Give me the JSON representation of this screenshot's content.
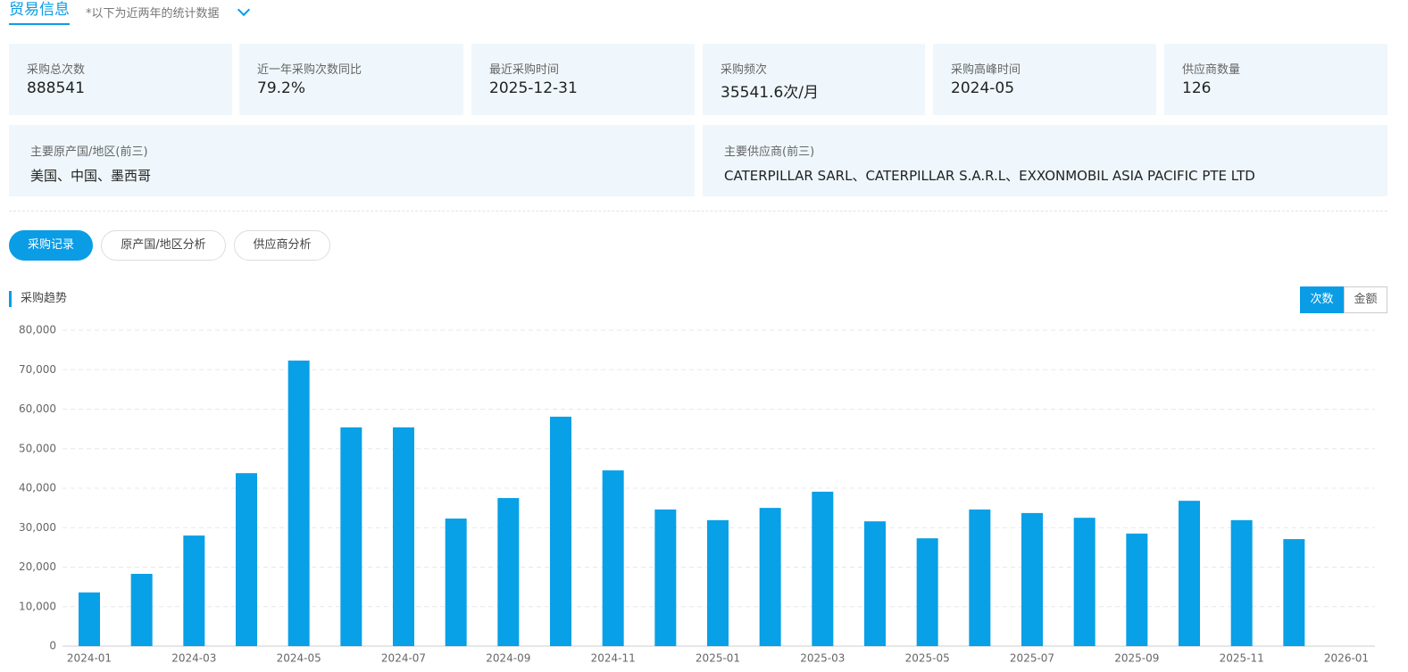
{
  "header": {
    "title": "贸易信息",
    "note": "*以下为近两年的统计数据"
  },
  "stats": [
    {
      "label": "采购总次数",
      "value": "888541"
    },
    {
      "label": "近一年采购次数同比",
      "value": "79.2%"
    },
    {
      "label": "最近采购时间",
      "value": "2025-12-31"
    },
    {
      "label": "采购频次",
      "value": "35541.6次/月"
    },
    {
      "label": "采购高峰时间",
      "value": "2024-05"
    },
    {
      "label": "供应商数量",
      "value": "126"
    }
  ],
  "highlights": [
    {
      "label": "主要原产国/地区(前三)",
      "value": "美国、中国、墨西哥"
    },
    {
      "label": "主要供应商(前三)",
      "value": "CATERPILLAR SARL、CATERPILLAR S.A.R.L、EXXONMOBIL ASIA PACIFIC PTE LTD"
    }
  ],
  "tabs": [
    "采购记录",
    "原产国/地区分析",
    "供应商分析"
  ],
  "chart_section": {
    "title": "采购趋势",
    "toggles": [
      "次数",
      "金额"
    ]
  },
  "chart_data": {
    "type": "bar",
    "color": "#08a0e6",
    "grid": true,
    "categories": [
      "2024-01",
      null,
      "2024-03",
      null,
      "2024-05",
      null,
      "2024-07",
      null,
      "2024-09",
      null,
      "2024-11",
      null,
      "2025-01",
      null,
      "2025-03",
      null,
      "2025-05",
      null,
      "2025-07",
      null,
      "2025-09",
      null,
      "2025-11",
      null,
      "2026-01"
    ],
    "values": [
      13600,
      18300,
      28000,
      43800,
      72300,
      55400,
      55400,
      32300,
      37500,
      58100,
      44500,
      34600,
      31900,
      35000,
      39100,
      31600,
      27300,
      34600,
      33700,
      32500,
      28500,
      36800,
      31900,
      27100,
      null
    ],
    "ylim": [
      0,
      80000
    ],
    "yticks": [
      0,
      {
        "value": 10000,
        "label": "10,000"
      },
      {
        "value": 20000,
        "label": "20,000"
      },
      {
        "value": 30000,
        "label": "30,000"
      },
      {
        "value": 40000,
        "label": "40,000"
      },
      {
        "value": 50000,
        "label": "50,000"
      },
      {
        "value": 60000,
        "label": "60,000"
      },
      {
        "value": 70000,
        "label": "70,000"
      },
      {
        "value": 80000,
        "label": "80,000"
      }
    ]
  }
}
